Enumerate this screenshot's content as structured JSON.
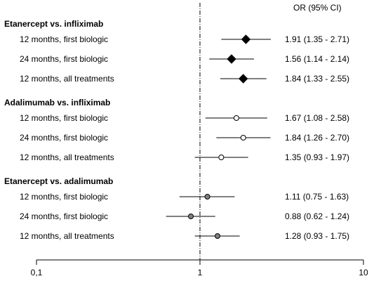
{
  "chart_data": {
    "type": "forest",
    "x_scale": "log",
    "xlim": [
      0.1,
      10
    ],
    "x_ticks": [
      {
        "value": 0.1,
        "label": "0,1"
      },
      {
        "value": 1,
        "label": "1"
      },
      {
        "value": 10,
        "label": "10"
      }
    ],
    "reference_line": 1,
    "column_header": "OR (95% CI)",
    "groups": [
      {
        "title": "Etanercept vs. infliximab",
        "marker": "black-diamond",
        "rows": [
          {
            "label": "12 months, first biologic",
            "or": 1.91,
            "lo": 1.35,
            "hi": 2.71,
            "text": "1.91 (1.35 - 2.71)"
          },
          {
            "label": "24 months, first biologic",
            "or": 1.56,
            "lo": 1.14,
            "hi": 2.14,
            "text": "1.56 (1.14 - 2.14)"
          },
          {
            "label": "12 months, all treatments",
            "or": 1.84,
            "lo": 1.33,
            "hi": 2.55,
            "text": "1.84 (1.33 - 2.55)"
          }
        ]
      },
      {
        "title": "Adalimumab vs. infliximab",
        "marker": "white-circle",
        "rows": [
          {
            "label": "12 months, first biologic",
            "or": 1.67,
            "lo": 1.08,
            "hi": 2.58,
            "text": "1.67 (1.08 - 2.58)"
          },
          {
            "label": "24 months, first biologic",
            "or": 1.84,
            "lo": 1.26,
            "hi": 2.7,
            "text": "1.84 (1.26 - 2.70)"
          },
          {
            "label": "12 months, all treatments",
            "or": 1.35,
            "lo": 0.93,
            "hi": 1.97,
            "text": "1.35 (0.93 - 1.97)"
          }
        ]
      },
      {
        "title": "Etanercept vs. adalimumab",
        "marker": "grey-circle",
        "rows": [
          {
            "label": "12 months, first biologic",
            "or": 1.11,
            "lo": 0.75,
            "hi": 1.63,
            "text": "1.11 (0.75 - 1.63)"
          },
          {
            "label": "24 months, first biologic",
            "or": 0.88,
            "lo": 0.62,
            "hi": 1.24,
            "text": "0.88 (0.62 - 1.24)"
          },
          {
            "label": "12 months, all treatments",
            "or": 1.28,
            "lo": 0.93,
            "hi": 1.75,
            "text": "1.28 (0.93 - 1.75)"
          }
        ]
      }
    ]
  },
  "colors": {
    "black-diamond": "#000000",
    "white-circle": "#ffffff",
    "grey-circle": "#808080",
    "line": "#000000"
  }
}
